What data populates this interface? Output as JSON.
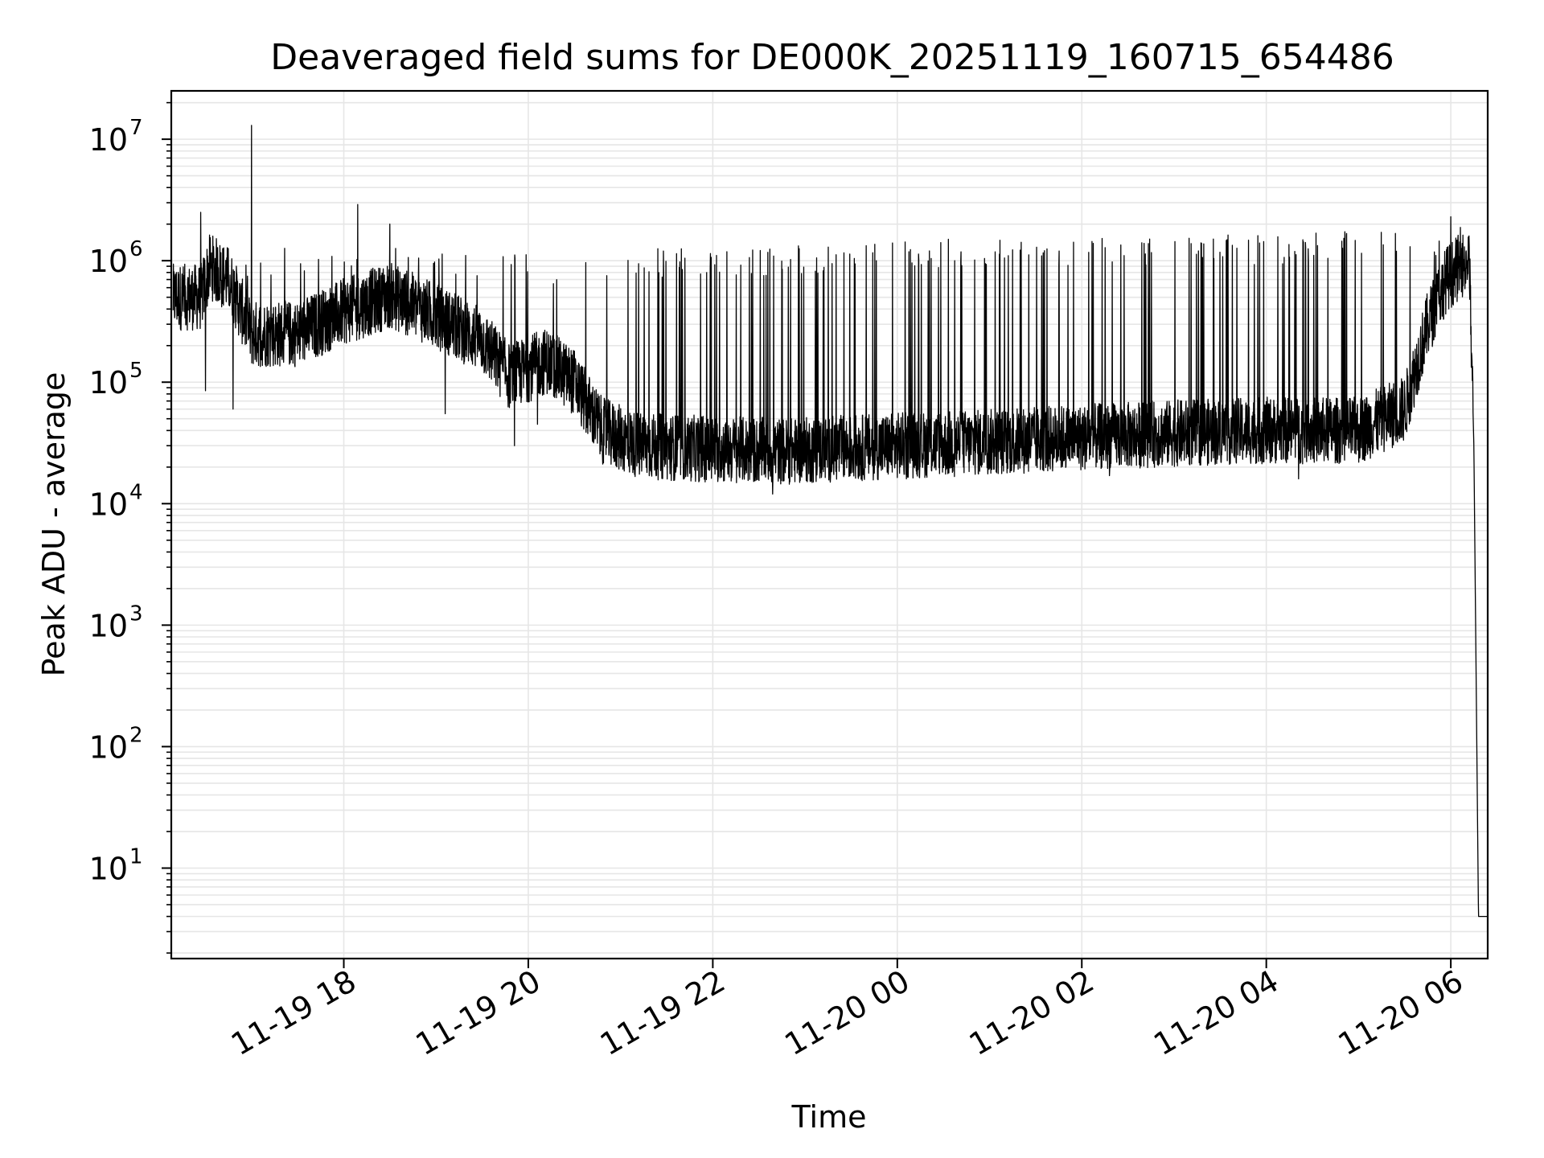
{
  "chart_data": {
    "type": "line",
    "title": "Deaveraged field sums for DE000K_20251119_160715_654486",
    "xlabel": "Time",
    "ylabel": "Peak ADU - average",
    "yscale": "log",
    "grid": true,
    "line_color": "#000000",
    "grid_color": "#e6e6e6",
    "x_range_hours": [
      16.13,
      30.4
    ],
    "ylim": [
      1.8,
      25000000
    ],
    "x_ticks": [
      {
        "hour": 18,
        "label": "11-19 18"
      },
      {
        "hour": 20,
        "label": "11-19 20"
      },
      {
        "hour": 22,
        "label": "11-19 22"
      },
      {
        "hour": 24,
        "label": "11-20 00"
      },
      {
        "hour": 26,
        "label": "11-20 02"
      },
      {
        "hour": 28,
        "label": "11-20 04"
      },
      {
        "hour": 30,
        "label": "11-20 06"
      }
    ],
    "y_ticks": [
      {
        "value": 10,
        "base": "10",
        "exp": "1"
      },
      {
        "value": 100,
        "base": "10",
        "exp": "2"
      },
      {
        "value": 1000,
        "base": "10",
        "exp": "3"
      },
      {
        "value": 10000,
        "base": "10",
        "exp": "4"
      },
      {
        "value": 100000,
        "base": "10",
        "exp": "5"
      },
      {
        "value": 1000000,
        "base": "10",
        "exp": "6"
      },
      {
        "value": 10000000,
        "base": "10",
        "exp": "7"
      }
    ],
    "baseline_envelope": [
      {
        "hour": 16.15,
        "value": 500000
      },
      {
        "hour": 16.45,
        "value": 500000
      },
      {
        "hour": 16.55,
        "value": 900000
      },
      {
        "hour": 16.75,
        "value": 700000
      },
      {
        "hour": 17.0,
        "value": 250000
      },
      {
        "hour": 17.5,
        "value": 250000
      },
      {
        "hour": 18.0,
        "value": 380000
      },
      {
        "hour": 18.5,
        "value": 520000
      },
      {
        "hour": 19.0,
        "value": 350000
      },
      {
        "hour": 19.5,
        "value": 220000
      },
      {
        "hour": 19.8,
        "value": 110000
      },
      {
        "hour": 20.2,
        "value": 150000
      },
      {
        "hour": 20.5,
        "value": 100000
      },
      {
        "hour": 20.8,
        "value": 40000
      },
      {
        "hour": 21.2,
        "value": 30000
      },
      {
        "hour": 22.0,
        "value": 28000
      },
      {
        "hour": 22.8,
        "value": 27000
      },
      {
        "hour": 24.0,
        "value": 30000
      },
      {
        "hour": 25.0,
        "value": 32000
      },
      {
        "hour": 26.0,
        "value": 35000
      },
      {
        "hour": 27.0,
        "value": 38000
      },
      {
        "hour": 28.0,
        "value": 40000
      },
      {
        "hour": 29.0,
        "value": 40000
      },
      {
        "hour": 29.5,
        "value": 60000
      },
      {
        "hour": 29.75,
        "value": 300000
      },
      {
        "hour": 29.95,
        "value": 700000
      },
      {
        "hour": 30.1,
        "value": 900000
      },
      {
        "hour": 30.2,
        "value": 1000000
      },
      {
        "hour": 30.25,
        "value": 30000
      },
      {
        "hour": 30.3,
        "value": 4
      },
      {
        "hour": 30.4,
        "value": 4
      }
    ],
    "spike_level_envelope": [
      {
        "hour": 16.15,
        "value": 700000
      },
      {
        "hour": 17.0,
        "value": 1000000
      },
      {
        "hour": 18.0,
        "value": 1200000
      },
      {
        "hour": 18.5,
        "value": 1300000
      },
      {
        "hour": 19.5,
        "value": 900000
      },
      {
        "hour": 20.5,
        "value": 900000
      },
      {
        "hour": 21.0,
        "value": 1000000
      },
      {
        "hour": 22.5,
        "value": 1000000
      },
      {
        "hour": 24.0,
        "value": 1200000
      },
      {
        "hour": 26.0,
        "value": 1300000
      },
      {
        "hour": 28.0,
        "value": 1300000
      },
      {
        "hour": 29.5,
        "value": 1500000
      },
      {
        "hour": 30.2,
        "value": 1500000
      }
    ],
    "notable_peaks": [
      {
        "hour": 16.45,
        "value": 2500000
      },
      {
        "hour": 17.0,
        "value": 13000000
      },
      {
        "hour": 18.15,
        "value": 2900000
      },
      {
        "hour": 18.5,
        "value": 2000000
      },
      {
        "hour": 30.0,
        "value": 2300000
      }
    ],
    "notable_dips": [
      {
        "hour": 16.5,
        "value": 85000
      },
      {
        "hour": 16.8,
        "value": 60000
      },
      {
        "hour": 19.1,
        "value": 55000
      },
      {
        "hour": 19.85,
        "value": 30000
      },
      {
        "hour": 20.1,
        "value": 45000
      },
      {
        "hour": 22.65,
        "value": 12000
      },
      {
        "hour": 24.1,
        "value": 16000
      },
      {
        "hour": 26.3,
        "value": 17000
      },
      {
        "hour": 28.35,
        "value": 16000
      }
    ]
  }
}
